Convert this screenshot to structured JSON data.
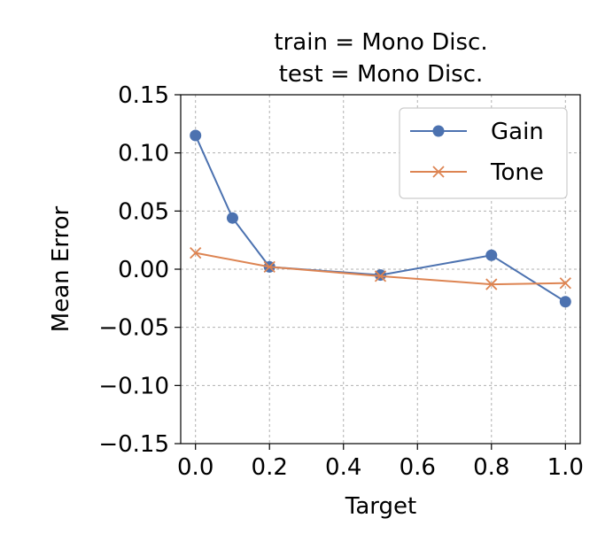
{
  "chart_data": {
    "type": "line",
    "title": "train = Mono Disc.",
    "subtitle": "test = Mono Disc.",
    "xlabel": "Target",
    "ylabel": "Mean Error",
    "xlim": [
      -0.04,
      1.04
    ],
    "ylim": [
      -0.15,
      0.15
    ],
    "xticks": [
      0.0,
      0.2,
      0.4,
      0.6,
      0.8,
      1.0
    ],
    "xtick_labels": [
      "0.0",
      "0.2",
      "0.4",
      "0.6",
      "0.8",
      "1.0"
    ],
    "yticks": [
      0.15,
      0.1,
      0.05,
      0.0,
      -0.05,
      -0.1,
      -0.15
    ],
    "ytick_labels": [
      "0.15",
      "0.10",
      "0.05",
      "0.00",
      "−0.05",
      "−0.10",
      "−0.15"
    ],
    "grid": true,
    "legend_position": "top-right",
    "series": [
      {
        "name": "Gain",
        "color": "#4c72b0",
        "marker": "circle",
        "x": [
          0.0,
          0.1,
          0.2,
          0.5,
          0.8,
          1.0
        ],
        "y": [
          0.115,
          0.044,
          0.002,
          -0.005,
          0.012,
          -0.028
        ]
      },
      {
        "name": "Tone",
        "color": "#dd8452",
        "marker": "x",
        "x": [
          0.0,
          0.2,
          0.5,
          0.8,
          1.0
        ],
        "y": [
          0.014,
          0.002,
          -0.006,
          -0.013,
          -0.012
        ]
      }
    ]
  }
}
